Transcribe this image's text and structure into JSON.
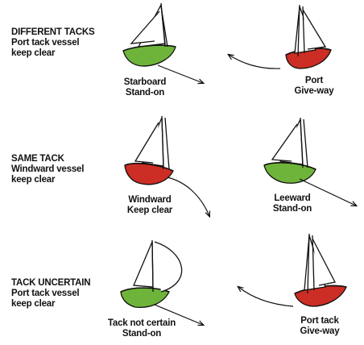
{
  "rules": [
    {
      "heading": "DIFFERENT TACKS",
      "line1": "Port tack vessel",
      "line2": "keep clear"
    },
    {
      "heading": "SAME TACK",
      "line1": "Windward vessel",
      "line2": "keep clear"
    },
    {
      "heading": "TACK UNCERTAIN",
      "line1": "Port tack vessel",
      "line2": "keep clear"
    }
  ],
  "captions": {
    "starboard": [
      "Starboard",
      "Stand-on"
    ],
    "port": [
      "Port",
      "Give-way"
    ],
    "windward": [
      "Windward",
      "Keep clear"
    ],
    "leeward": [
      "Leeward",
      "Stand-on"
    ],
    "uncertain": [
      "Tack not certain",
      "Stand-on"
    ],
    "port_tack": [
      "Port tack",
      "Give-way"
    ]
  },
  "colors": {
    "hull_green": "#6fb43a",
    "hull_red": "#cc2d24",
    "ink": "#111111"
  }
}
